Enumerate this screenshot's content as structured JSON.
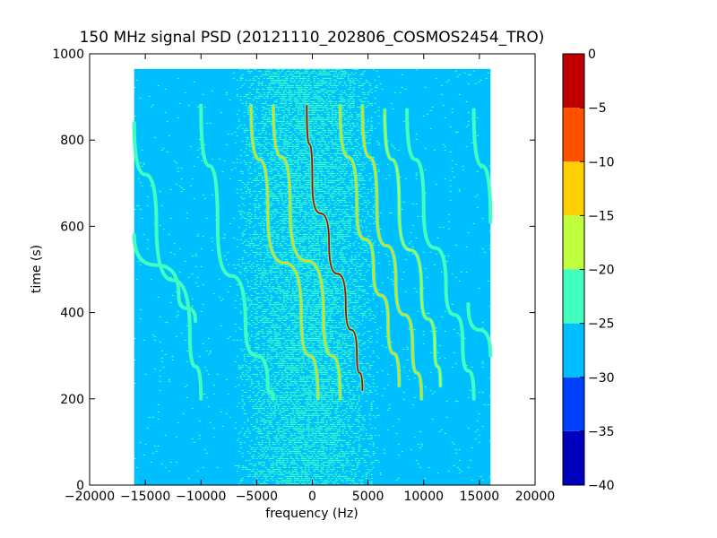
{
  "chart_data": {
    "type": "heatmap",
    "title": "150 MHz signal PSD (20121110_202806_COSMOS2454_TRO)",
    "xlabel": "frequency (Hz)",
    "ylabel": "time (s)",
    "xlim": [
      -20000,
      20000
    ],
    "ylim": [
      0,
      1000
    ],
    "data_extent": {
      "x": [
        -16000,
        16000
      ],
      "y": [
        0,
        965
      ]
    },
    "x_ticks": [
      {
        "value": -20000,
        "label": "−20000"
      },
      {
        "value": -15000,
        "label": "−15000"
      },
      {
        "value": -10000,
        "label": "−10000"
      },
      {
        "value": -5000,
        "label": "−5000"
      },
      {
        "value": 0,
        "label": "0"
      },
      {
        "value": 5000,
        "label": "5000"
      },
      {
        "value": 10000,
        "label": "10000"
      },
      {
        "value": 15000,
        "label": "15000"
      },
      {
        "value": 20000,
        "label": "20000"
      }
    ],
    "y_ticks": [
      {
        "value": 0,
        "label": "0"
      },
      {
        "value": 200,
        "label": "200"
      },
      {
        "value": 400,
        "label": "400"
      },
      {
        "value": 600,
        "label": "600"
      },
      {
        "value": 800,
        "label": "800"
      },
      {
        "value": 1000,
        "label": "1000"
      }
    ],
    "colorbar": {
      "range": [
        -40,
        0
      ],
      "levels": [
        {
          "from": -40,
          "to": -35,
          "color": "#0000bf"
        },
        {
          "from": -35,
          "to": -30,
          "color": "#0040ff"
        },
        {
          "from": -30,
          "to": -25,
          "color": "#00bfff"
        },
        {
          "from": -25,
          "to": -20,
          "color": "#40ffbf"
        },
        {
          "from": -20,
          "to": -15,
          "color": "#bfff40"
        },
        {
          "from": -15,
          "to": -10,
          "color": "#ffd000"
        },
        {
          "from": -10,
          "to": -5,
          "color": "#ff5000"
        },
        {
          "from": -5,
          "to": 0,
          "color": "#c00000"
        }
      ],
      "ticks": [
        {
          "value": 0,
          "label": "0"
        },
        {
          "value": -5,
          "label": "−5"
        },
        {
          "value": -10,
          "label": "−10"
        },
        {
          "value": -15,
          "label": "−15"
        },
        {
          "value": -20,
          "label": "−20"
        },
        {
          "value": -25,
          "label": "−25"
        },
        {
          "value": -30,
          "label": "−30"
        },
        {
          "value": -35,
          "label": "−35"
        },
        {
          "value": -40,
          "label": "−40"
        }
      ]
    },
    "background_level": -27.5,
    "central_noise_band": {
      "x": [
        -7000,
        6000
      ],
      "level": -22.5
    },
    "signal_traces": [
      {
        "points": [
          [
            -16000,
            580
          ],
          [
            -12000,
            440
          ],
          [
            -10500,
            380
          ]
        ],
        "peak_level": -22.5
      },
      {
        "points": [
          [
            -16000,
            840
          ],
          [
            -14000,
            600
          ],
          [
            -11000,
            350
          ],
          [
            -10000,
            200
          ]
        ],
        "peak_level": -22.5
      },
      {
        "points": [
          [
            -10000,
            880
          ],
          [
            -8500,
            600
          ],
          [
            -6000,
            370
          ],
          [
            -4000,
            230
          ],
          [
            -3500,
            200
          ]
        ],
        "peak_level": -22.5
      },
      {
        "points": [
          [
            -5500,
            880
          ],
          [
            -4000,
            630
          ],
          [
            -1000,
            400
          ],
          [
            500,
            200
          ]
        ],
        "peak_level": -12.5
      },
      {
        "points": [
          [
            -3500,
            880
          ],
          [
            -2000,
            640
          ],
          [
            1000,
            400
          ],
          [
            2500,
            200
          ]
        ],
        "peak_level": -12.5
      },
      {
        "points": [
          [
            -500,
            880
          ],
          [
            0,
            700
          ],
          [
            1500,
            560
          ],
          [
            3000,
            420
          ],
          [
            4000,
            300
          ],
          [
            4500,
            220
          ]
        ],
        "peak_level": -2.5
      },
      {
        "points": [
          [
            2500,
            880
          ],
          [
            4000,
            640
          ],
          [
            5500,
            500
          ],
          [
            6800,
            380
          ],
          [
            7800,
            230
          ]
        ],
        "peak_level": -12.5
      },
      {
        "points": [
          [
            4500,
            880
          ],
          [
            5800,
            640
          ],
          [
            7500,
            470
          ],
          [
            9000,
            320
          ],
          [
            9800,
            200
          ]
        ],
        "peak_level": -12.5
      },
      {
        "points": [
          [
            6500,
            870
          ],
          [
            7800,
            640
          ],
          [
            9800,
            450
          ],
          [
            11000,
            320
          ],
          [
            11500,
            230
          ]
        ],
        "peak_level": -17.5
      },
      {
        "points": [
          [
            8500,
            870
          ],
          [
            10000,
            640
          ],
          [
            12000,
            460
          ],
          [
            13500,
            330
          ],
          [
            14500,
            200
          ]
        ],
        "peak_level": -22.5
      },
      {
        "points": [
          [
            14500,
            870
          ],
          [
            16000,
            610
          ]
        ],
        "peak_level": -22.5
      },
      {
        "points": [
          [
            14000,
            420
          ],
          [
            16000,
            300
          ]
        ],
        "peak_level": -22.5
      }
    ]
  }
}
